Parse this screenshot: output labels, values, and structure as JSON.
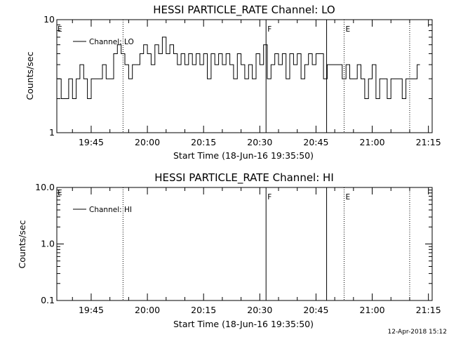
{
  "chart_data": [
    {
      "type": "line",
      "title": "HESSI PARTICLE_RATE Channel: LO",
      "xlabel": "Start Time (18-Jun-16 19:35:50)",
      "ylabel": "Counts/sec",
      "yscale": "log",
      "ylim": [
        1,
        10
      ],
      "ytick_labels": [
        "1",
        "10"
      ],
      "xlim": [
        "19:35:50",
        "21:16:00"
      ],
      "xtick_labels": [
        "19:45",
        "20:00",
        "20:15",
        "20:30",
        "20:45",
        "21:00",
        "21:15"
      ],
      "grid": false,
      "legend": {
        "position": "top-left",
        "entries": [
          "Channel: LO"
        ]
      },
      "series": [
        {
          "name": "Channel: LO",
          "x": [
            "19:36",
            "19:37",
            "19:38",
            "19:39",
            "19:40",
            "19:41",
            "19:42",
            "19:43",
            "19:44",
            "19:45",
            "19:46",
            "19:47",
            "19:48",
            "19:49",
            "19:50",
            "19:51",
            "19:52",
            "19:53",
            "19:54",
            "19:55",
            "19:56",
            "19:57",
            "19:58",
            "19:59",
            "20:00",
            "20:01",
            "20:02",
            "20:03",
            "20:04",
            "20:05",
            "20:06",
            "20:07",
            "20:08",
            "20:09",
            "20:10",
            "20:11",
            "20:12",
            "20:13",
            "20:14",
            "20:15",
            "20:16",
            "20:17",
            "20:18",
            "20:19",
            "20:20",
            "20:21",
            "20:22",
            "20:23",
            "20:24",
            "20:25",
            "20:26",
            "20:27",
            "20:28",
            "20:29",
            "20:30",
            "20:31",
            "20:32",
            "20:33",
            "20:34",
            "20:35",
            "20:36",
            "20:37",
            "20:38",
            "20:39",
            "20:40",
            "20:41",
            "20:42",
            "20:43",
            "20:44",
            "20:45",
            "20:46",
            "20:47",
            "20:48",
            "20:49",
            "20:50",
            "20:51",
            "20:52",
            "20:53",
            "20:54",
            "20:55",
            "20:56",
            "20:57",
            "20:58",
            "20:59",
            "21:00",
            "21:01",
            "21:02",
            "21:03",
            "21:04",
            "21:05",
            "21:06",
            "21:07",
            "21:08",
            "21:09",
            "21:10",
            "21:11",
            "21:12"
          ],
          "values": [
            3,
            2,
            2,
            3,
            2,
            3,
            4,
            3,
            2,
            3,
            3,
            3,
            4,
            3,
            3,
            5,
            6,
            5,
            4,
            3,
            4,
            4,
            5,
            6,
            5,
            4,
            6,
            5,
            7,
            5,
            6,
            5,
            4,
            5,
            4,
            5,
            4,
            5,
            4,
            5,
            3,
            5,
            4,
            5,
            4,
            5,
            4,
            3,
            5,
            4,
            3,
            4,
            3,
            5,
            4,
            6,
            3,
            4,
            5,
            4,
            5,
            3,
            5,
            4,
            5,
            3,
            4,
            5,
            4,
            5,
            5,
            3,
            4,
            4,
            4,
            4,
            3,
            4,
            3,
            3,
            4,
            3,
            2,
            3,
            4,
            2,
            3,
            3,
            2,
            3,
            3,
            3,
            2,
            3,
            3,
            3,
            4
          ]
        }
      ],
      "annotations": {
        "vertical_lines": [
          {
            "x": "19:53:30",
            "style": "dotted"
          },
          {
            "x": "20:31:40",
            "style": "solid",
            "label": "F"
          },
          {
            "x": "20:47:50",
            "style": "solid"
          },
          {
            "x": "20:52:30",
            "style": "dotted",
            "label": "E"
          },
          {
            "x": "21:10:00",
            "style": "dotted"
          }
        ],
        "left_label": "E"
      }
    },
    {
      "type": "line",
      "title": "HESSI PARTICLE_RATE Channel: HI",
      "xlabel": "Start Time (18-Jun-16 19:35:50)",
      "ylabel": "Counts/sec",
      "yscale": "log",
      "ylim": [
        0.1,
        10.0
      ],
      "ytick_labels": [
        "0.1",
        "1.0",
        "10.0"
      ],
      "xlim": [
        "19:35:50",
        "21:16:00"
      ],
      "xtick_labels": [
        "19:45",
        "20:00",
        "20:15",
        "20:30",
        "20:45",
        "21:00",
        "21:15"
      ],
      "grid": false,
      "legend": {
        "position": "top-left",
        "entries": [
          "Channel: HI"
        ]
      },
      "series": [
        {
          "name": "Channel: HI",
          "x": [],
          "values": []
        }
      ],
      "annotations": {
        "vertical_lines": [
          {
            "x": "19:53:30",
            "style": "dotted"
          },
          {
            "x": "20:31:40",
            "style": "solid",
            "label": "F"
          },
          {
            "x": "20:47:50",
            "style": "solid"
          },
          {
            "x": "20:52:30",
            "style": "dotted",
            "label": "E"
          },
          {
            "x": "21:10:00",
            "style": "dotted"
          }
        ],
        "left_label": "E"
      }
    }
  ],
  "footer": {
    "timestamp": "12-Apr-2018 15:12"
  }
}
